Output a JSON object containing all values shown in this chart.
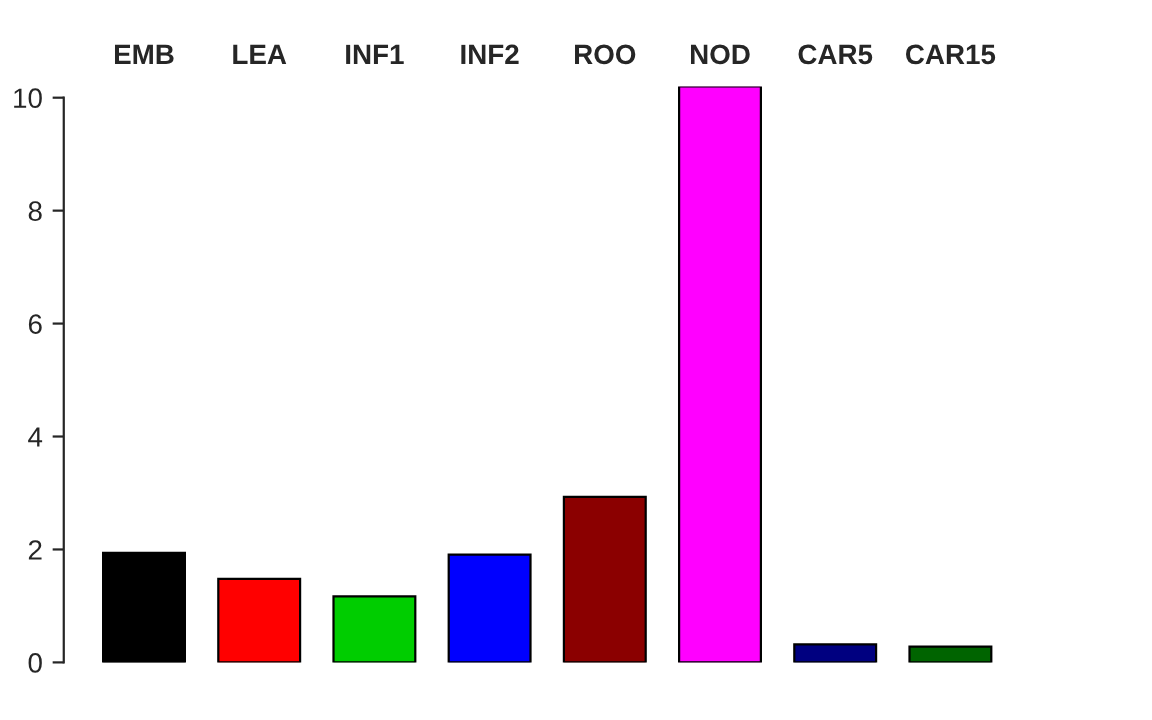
{
  "chart_data": {
    "type": "bar",
    "categories": [
      "EMB",
      "LEA",
      "INF1",
      "INF2",
      "ROO",
      "NOD",
      "CAR5",
      "CAR15"
    ],
    "values": [
      1.94,
      1.48,
      1.17,
      1.91,
      2.93,
      10.2,
      0.32,
      0.28
    ],
    "colors": [
      "#000000",
      "#ff0000",
      "#00cd00",
      "#0000ff",
      "#8b0000",
      "#ff00ff",
      "#000080",
      "#006400"
    ],
    "ylim": [
      0,
      10.2
    ],
    "yticks": [
      0,
      2,
      4,
      6,
      8,
      10
    ],
    "grid": false,
    "legend": false
  }
}
